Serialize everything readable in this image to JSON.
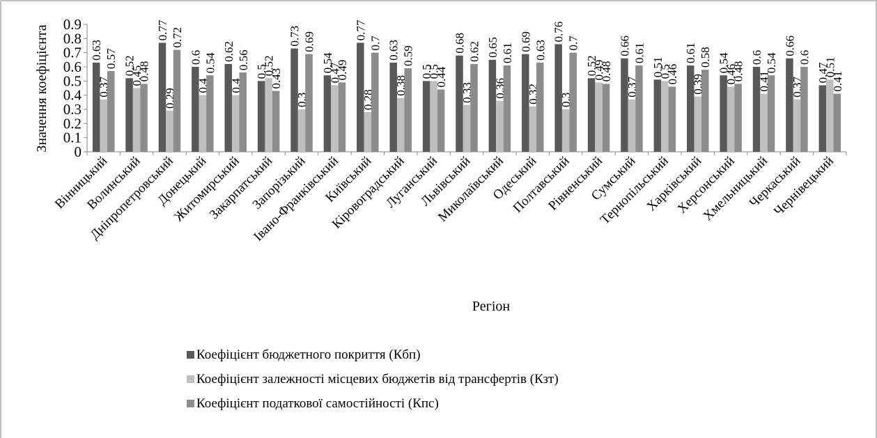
{
  "chart_data": {
    "type": "bar",
    "y_label": "Значення коефіцієнта",
    "x_label": "Регіон",
    "categories": [
      "Вінницький",
      "Волинський",
      "Дніпропетровський",
      "Донецький",
      "Житомирський",
      "Закарпатський",
      "Запорізький",
      "Івано-Франківський",
      "Київський",
      "Кіровоградський",
      "Луганський",
      "Львівський",
      "Миколаївський",
      "Одеський",
      "Полтавський",
      "Рівненський",
      "Сумський",
      "Тернопільський",
      "Харківський",
      "Херсонський",
      "Хмельницький",
      "Черкаський",
      "Чернівецький"
    ],
    "series": [
      {
        "name": "Коефіцієнт бюджетного покриття (Кбп)",
        "color": "#595959",
        "values": [
          0.63,
          0.52,
          0.77,
          0.6,
          0.62,
          0.5,
          0.73,
          0.54,
          0.77,
          0.63,
          0.5,
          0.68,
          0.65,
          0.69,
          0.76,
          0.52,
          0.66,
          0.51,
          0.61,
          0.54,
          0.6,
          0.66,
          0.47
        ]
      },
      {
        "name": "Коефіцієнт залежності місцевих бюджетів від трансфертів (Кзт)",
        "color": "#bfbfbf",
        "values": [
          0.37,
          0.45,
          0.29,
          0.4,
          0.4,
          0.52,
          0.3,
          0.47,
          0.28,
          0.38,
          0.5,
          0.33,
          0.36,
          0.32,
          0.3,
          0.49,
          0.37,
          0.5,
          0.39,
          0.46,
          0.41,
          0.37,
          0.51
        ]
      },
      {
        "name": "Коефіцієнт податкової самостійності (Кпс)",
        "color": "#8c8c8c",
        "values": [
          0.57,
          0.48,
          0.72,
          0.54,
          0.56,
          0.43,
          0.69,
          0.49,
          0.7,
          0.59,
          0.44,
          0.62,
          0.61,
          0.63,
          0.7,
          0.48,
          0.61,
          0.46,
          0.58,
          0.48,
          0.54,
          0.6,
          0.41
        ]
      }
    ],
    "ylim": [
      0,
      0.9
    ],
    "yticks": [
      0,
      0.1,
      0.2,
      0.3,
      0.4,
      0.5,
      0.6,
      0.7,
      0.8,
      0.9
    ],
    "grid": false,
    "legend": "bottom"
  }
}
